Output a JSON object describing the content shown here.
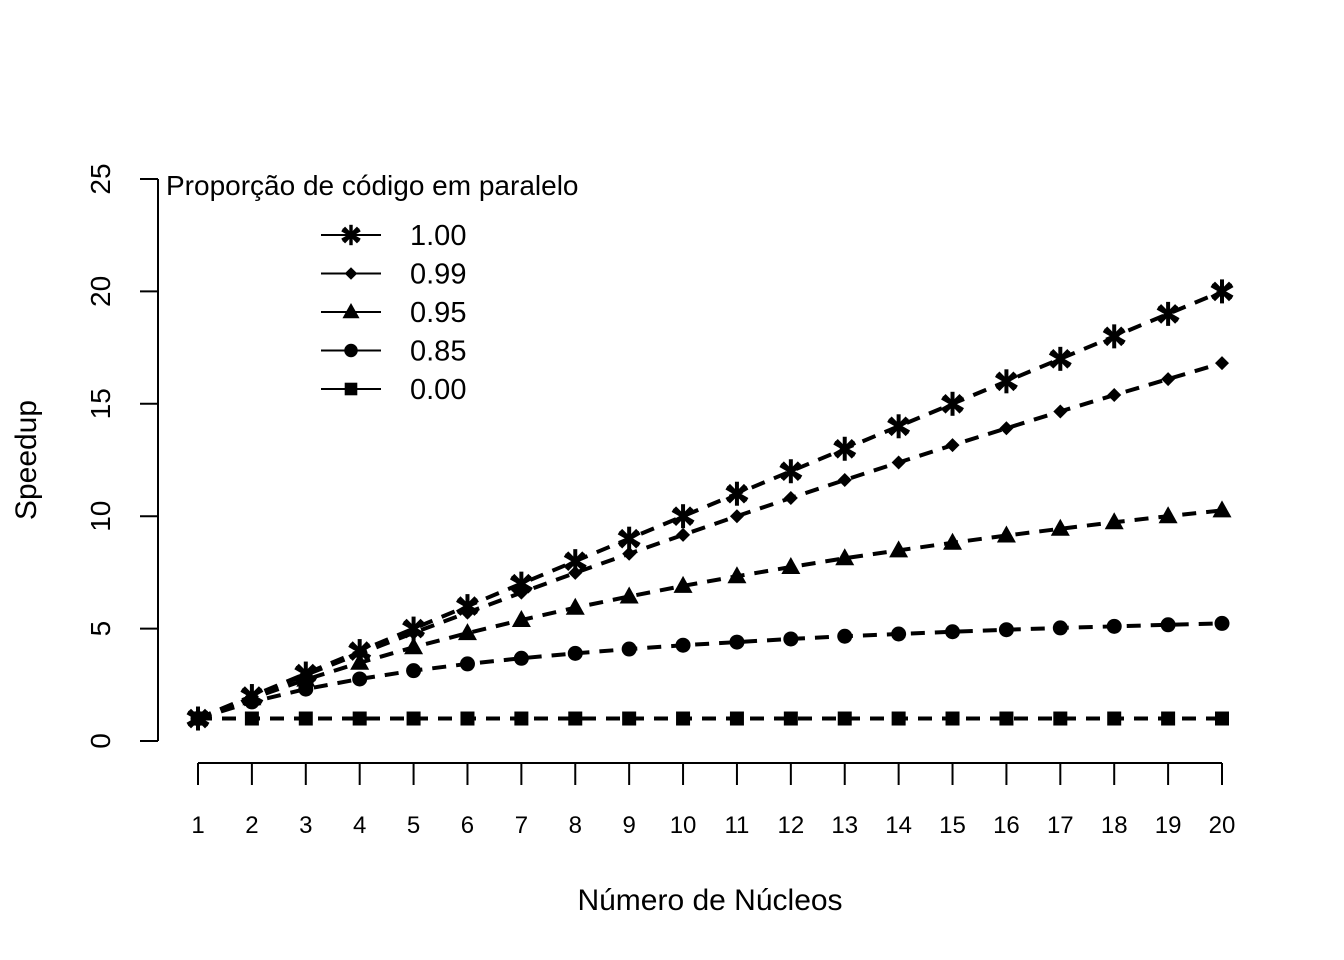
{
  "chart_data": {
    "type": "line",
    "xlabel": "Número de Núcleos",
    "ylabel": "Speedup",
    "x": [
      1,
      2,
      3,
      4,
      5,
      6,
      7,
      8,
      9,
      10,
      11,
      12,
      13,
      14,
      15,
      16,
      17,
      18,
      19,
      20
    ],
    "ylim": [
      0,
      25
    ],
    "yticks": [
      0,
      5,
      10,
      15,
      20,
      25
    ],
    "grid": false,
    "legend": {
      "title": "Proporção de código em paralelo",
      "position": "top-left"
    },
    "series": [
      {
        "name": "1.00",
        "marker": "asterisk",
        "values": [
          1,
          2,
          3,
          4,
          5,
          6,
          7,
          8,
          9,
          10,
          11,
          12,
          13,
          14,
          15,
          16,
          17,
          18,
          19,
          20
        ]
      },
      {
        "name": "0.99",
        "marker": "diamond",
        "values": [
          1,
          1.98,
          2.94,
          3.88,
          4.81,
          5.71,
          6.6,
          7.48,
          8.33,
          9.17,
          10,
          10.81,
          11.61,
          12.39,
          13.16,
          13.91,
          14.66,
          15.39,
          16.1,
          16.81
        ]
      },
      {
        "name": "0.95",
        "marker": "triangle",
        "values": [
          1,
          1.9,
          2.73,
          3.48,
          4.17,
          4.8,
          5.38,
          5.93,
          6.43,
          6.9,
          7.33,
          7.74,
          8.13,
          8.48,
          8.82,
          9.14,
          9.44,
          9.73,
          10,
          10.26
        ]
      },
      {
        "name": "0.85",
        "marker": "circle",
        "values": [
          1,
          1.74,
          2.31,
          2.76,
          3.13,
          3.43,
          3.68,
          3.9,
          4.09,
          4.26,
          4.4,
          4.54,
          4.66,
          4.76,
          4.86,
          4.95,
          5.03,
          5.1,
          5.17,
          5.23
        ]
      },
      {
        "name": "0.00",
        "marker": "square",
        "values": [
          1,
          1,
          1,
          1,
          1,
          1,
          1,
          1,
          1,
          1,
          1,
          1,
          1,
          1,
          1,
          1,
          1,
          1,
          1,
          1
        ]
      }
    ]
  }
}
